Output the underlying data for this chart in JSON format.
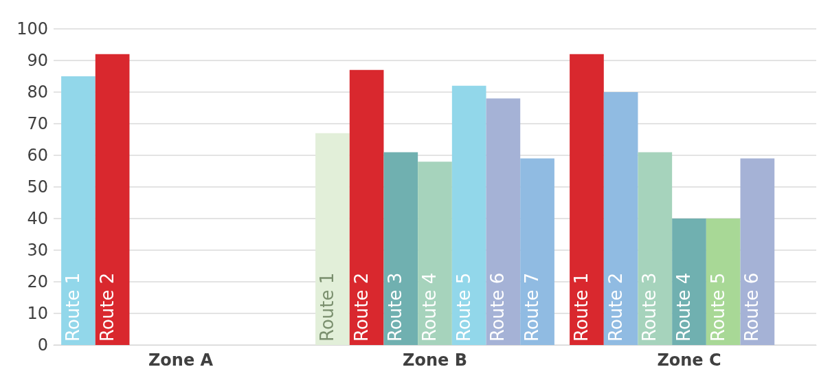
{
  "chart_data": {
    "type": "bar",
    "categories": [
      "Zone A",
      "Zone B",
      "Zone C"
    ],
    "series": [
      {
        "name": "Route 1",
        "values": [
          85,
          67,
          92
        ],
        "colors": [
          "#92d7ea",
          "#e2efd9",
          "#d9282e"
        ]
      },
      {
        "name": "Route 2",
        "values": [
          92,
          87,
          80
        ],
        "colors": [
          "#d9282e",
          "#d9282e",
          "#90bbe2"
        ]
      },
      {
        "name": "Route 3",
        "values": [
          null,
          61,
          61
        ],
        "colors": [
          null,
          "#70b0b0",
          "#a6d3bc"
        ]
      },
      {
        "name": "Route 4",
        "values": [
          null,
          58,
          40
        ],
        "colors": [
          null,
          "#a6d3bc",
          "#70b0b0"
        ]
      },
      {
        "name": "Route 5",
        "values": [
          null,
          82,
          40
        ],
        "colors": [
          null,
          "#92d7ea",
          "#a8d896"
        ]
      },
      {
        "name": "Route 6",
        "values": [
          null,
          78,
          59
        ],
        "colors": [
          null,
          "#a5b2d6",
          "#a5b2d6"
        ]
      },
      {
        "name": "Route 7",
        "values": [
          null,
          59,
          null
        ],
        "colors": [
          null,
          "#90bbe2",
          null
        ]
      }
    ],
    "ylim": [
      0,
      100
    ],
    "yticks": [
      0,
      10,
      20,
      30,
      40,
      50,
      60,
      70,
      80,
      90,
      100
    ],
    "grid": "y",
    "legend": false
  }
}
